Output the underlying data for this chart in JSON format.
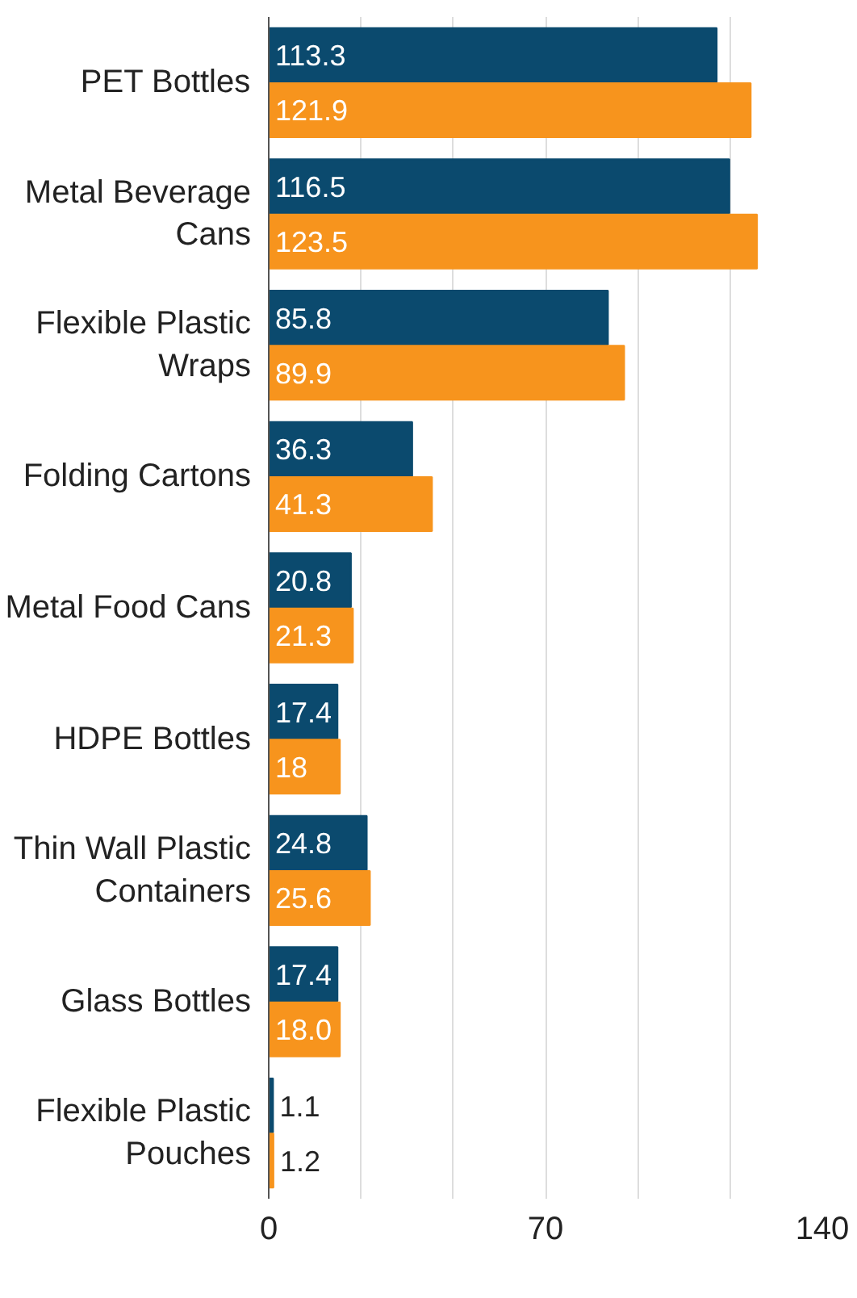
{
  "chart_data": {
    "type": "bar",
    "orientation": "horizontal",
    "categories": [
      "PET Bottles",
      "Metal Beverage Cans",
      "Flexible Plastic Wraps",
      "Folding Cartons",
      "Metal Food Cans",
      "HDPE Bottles",
      "Thin Wall Plastic Containers",
      "Glass Bottles",
      "Flexible Plastic Pouches"
    ],
    "series": [
      {
        "color": "#0b4a6e",
        "values": [
          113.3,
          116.5,
          85.8,
          36.3,
          20.8,
          17.4,
          24.8,
          17.4,
          1.1
        ],
        "value_labels": [
          "113.3",
          "116.5",
          "85.8",
          "36.3",
          "20.8",
          "17.4",
          "24.8",
          "17.4",
          "1.1"
        ]
      },
      {
        "color": "#f7941d",
        "values": [
          121.9,
          123.5,
          89.9,
          41.3,
          21.3,
          18,
          25.6,
          18.0,
          1.2
        ],
        "value_labels": [
          "121.9",
          "123.5",
          "89.9",
          "41.3",
          "21.3",
          "18",
          "25.6",
          "18.0",
          "1.2"
        ]
      }
    ],
    "xlim": [
      0,
      140
    ],
    "xticks": [
      0,
      {
        "value": 23.33,
        "label": null
      },
      {
        "value": 46.67,
        "label": null
      },
      70,
      {
        "value": 93.33,
        "label": null
      },
      {
        "value": 116.67,
        "label": null
      },
      140
    ],
    "grid": "x"
  }
}
